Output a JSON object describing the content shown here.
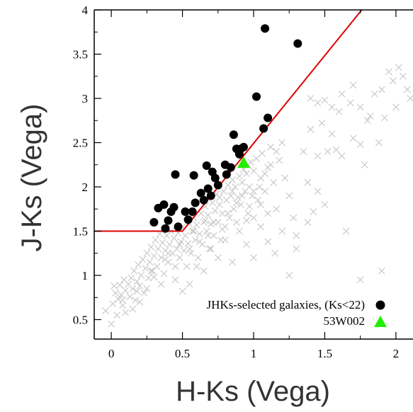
{
  "chart_data": {
    "type": "scatter",
    "xlabel": "H-Ks (Vega)",
    "ylabel": "J-Ks (Vega)",
    "xlim": [
      -0.12,
      2.12
    ],
    "ylim": [
      0.28,
      4.0
    ],
    "xticks": [
      0,
      0.5,
      1,
      1.5,
      2
    ],
    "xtick_labels": [
      "0",
      "0.5",
      "1",
      "1.5",
      "2"
    ],
    "yticks": [
      0.5,
      1,
      1.5,
      2,
      2.5,
      3,
      3.5,
      4
    ],
    "ytick_labels": [
      "0.5",
      "1",
      "1.5",
      "2",
      "2.5",
      "3",
      "3.5",
      "4"
    ],
    "grid": false,
    "legend_position": "bottom-right",
    "legend": [
      {
        "label": "JHKs-selected galaxies, (Ks<22)",
        "marker": "circle",
        "color": "#000000"
      },
      {
        "label": "53W002",
        "marker": "triangle",
        "color": "#22ee00"
      }
    ],
    "selection_line": {
      "color": "#dd0000",
      "points": [
        [
          -0.12,
          1.5
        ],
        [
          0.5,
          1.5
        ],
        [
          1.76,
          4.0
        ]
      ]
    },
    "selected_galaxies": [
      [
        0.3,
        1.6
      ],
      [
        0.33,
        1.76
      ],
      [
        0.37,
        1.8
      ],
      [
        0.38,
        1.53
      ],
      [
        0.4,
        1.62
      ],
      [
        0.42,
        1.72
      ],
      [
        0.44,
        1.77
      ],
      [
        0.45,
        2.14
      ],
      [
        0.47,
        1.55
      ],
      [
        0.52,
        1.72
      ],
      [
        0.54,
        1.63
      ],
      [
        0.57,
        1.72
      ],
      [
        0.58,
        2.13
      ],
      [
        0.59,
        1.82
      ],
      [
        0.63,
        1.93
      ],
      [
        0.65,
        1.85
      ],
      [
        0.67,
        2.24
      ],
      [
        0.68,
        1.98
      ],
      [
        0.7,
        1.9
      ],
      [
        0.71,
        2.17
      ],
      [
        0.73,
        2.1
      ],
      [
        0.75,
        2.02
      ],
      [
        0.8,
        2.25
      ],
      [
        0.81,
        2.14
      ],
      [
        0.84,
        2.22
      ],
      [
        0.86,
        2.59
      ],
      [
        0.88,
        2.43
      ],
      [
        0.9,
        2.37
      ],
      [
        0.91,
        2.43
      ],
      [
        0.93,
        2.45
      ],
      [
        1.02,
        3.02
      ],
      [
        1.07,
        2.66
      ],
      [
        1.08,
        3.79
      ],
      [
        1.1,
        2.78
      ],
      [
        1.31,
        3.62
      ]
    ],
    "target_53W002": [
      0.93,
      2.27
    ],
    "field_objects": [
      [
        -0.04,
        0.6
      ],
      [
        0.0,
        0.45
      ],
      [
        0.01,
        0.68
      ],
      [
        0.03,
        0.8
      ],
      [
        0.04,
        0.55
      ],
      [
        0.05,
        0.73
      ],
      [
        0.06,
        0.89
      ],
      [
        0.07,
        0.78
      ],
      [
        0.08,
        0.66
      ],
      [
        0.09,
        0.95
      ],
      [
        0.1,
        0.83
      ],
      [
        0.1,
        0.58
      ],
      [
        0.12,
        0.9
      ],
      [
        0.13,
        0.76
      ],
      [
        0.14,
        0.97
      ],
      [
        0.15,
        0.85
      ],
      [
        0.16,
        1.05
      ],
      [
        0.17,
        0.72
      ],
      [
        0.18,
        0.93
      ],
      [
        0.19,
        1.12
      ],
      [
        0.2,
        0.88
      ],
      [
        0.21,
        1.0
      ],
      [
        0.22,
        1.18
      ],
      [
        0.23,
        0.8
      ],
      [
        0.24,
        1.08
      ],
      [
        0.25,
        1.25
      ],
      [
        0.26,
        0.97
      ],
      [
        0.27,
        1.15
      ],
      [
        0.28,
        1.32
      ],
      [
        0.29,
        1.05
      ],
      [
        0.3,
        1.22
      ],
      [
        0.31,
        1.4
      ],
      [
        0.32,
        1.1
      ],
      [
        0.33,
        1.3
      ],
      [
        0.34,
        1.47
      ],
      [
        0.35,
        1.2
      ],
      [
        0.36,
        1.37
      ],
      [
        0.37,
        1.02
      ],
      [
        0.38,
        1.28
      ],
      [
        0.39,
        1.45
      ],
      [
        0.4,
        1.15
      ],
      [
        0.41,
        1.35
      ],
      [
        0.42,
        1.5
      ],
      [
        0.43,
        1.25
      ],
      [
        0.44,
        1.42
      ],
      [
        0.45,
        0.95
      ],
      [
        0.46,
        1.3
      ],
      [
        0.47,
        1.48
      ],
      [
        0.48,
        1.2
      ],
      [
        0.49,
        1.38
      ],
      [
        0.5,
        1.55
      ],
      [
        0.51,
        1.28
      ],
      [
        0.52,
        1.45
      ],
      [
        0.53,
        1.1
      ],
      [
        0.54,
        1.36
      ],
      [
        0.55,
        1.58
      ],
      [
        0.56,
        1.25
      ],
      [
        0.57,
        1.5
      ],
      [
        0.58,
        1.65
      ],
      [
        0.59,
        1.4
      ],
      [
        0.6,
        1.57
      ],
      [
        0.61,
        1.2
      ],
      [
        0.62,
        1.47
      ],
      [
        0.63,
        1.7
      ],
      [
        0.64,
        1.35
      ],
      [
        0.65,
        1.6
      ],
      [
        0.66,
        1.78
      ],
      [
        0.67,
        1.5
      ],
      [
        0.68,
        1.68
      ],
      [
        0.69,
        1.3
      ],
      [
        0.7,
        1.58
      ],
      [
        0.71,
        1.82
      ],
      [
        0.72,
        1.45
      ],
      [
        0.73,
        1.73
      ],
      [
        0.74,
        1.92
      ],
      [
        0.75,
        1.6
      ],
      [
        0.76,
        1.8
      ],
      [
        0.77,
        1.4
      ],
      [
        0.78,
        1.7
      ],
      [
        0.79,
        1.95
      ],
      [
        0.8,
        1.55
      ],
      [
        0.81,
        1.85
      ],
      [
        0.82,
        2.02
      ],
      [
        0.83,
        1.65
      ],
      [
        0.84,
        1.9
      ],
      [
        0.85,
        2.08
      ],
      [
        0.86,
        1.75
      ],
      [
        0.87,
        2.0
      ],
      [
        0.88,
        1.6
      ],
      [
        0.89,
        1.88
      ],
      [
        0.9,
        2.12
      ],
      [
        0.91,
        1.8
      ],
      [
        0.92,
        2.05
      ],
      [
        0.93,
        2.2
      ],
      [
        0.94,
        1.95
      ],
      [
        0.95,
        2.15
      ],
      [
        0.96,
        1.7
      ],
      [
        0.97,
        2.0
      ],
      [
        0.98,
        2.28
      ],
      [
        0.99,
        1.9
      ],
      [
        1.0,
        2.18
      ],
      [
        1.02,
        2.32
      ],
      [
        1.03,
        1.85
      ],
      [
        1.05,
        2.1
      ],
      [
        1.06,
        2.38
      ],
      [
        1.08,
        1.95
      ],
      [
        1.1,
        2.22
      ],
      [
        1.12,
        2.45
      ],
      [
        1.14,
        2.05
      ],
      [
        1.16,
        1.75
      ],
      [
        1.18,
        2.3
      ],
      [
        1.2,
        1.5
      ],
      [
        1.22,
        2.1
      ],
      [
        1.25,
        1.9
      ],
      [
        1.28,
        1.65
      ],
      [
        1.3,
        1.45
      ],
      [
        1.15,
        1.25
      ],
      [
        1.05,
        1.55
      ],
      [
        0.95,
        1.35
      ],
      [
        0.85,
        1.15
      ],
      [
        0.75,
        1.2
      ],
      [
        0.65,
        1.05
      ],
      [
        0.55,
        0.9
      ],
      [
        0.6,
        1.1
      ],
      [
        0.7,
        1.3
      ],
      [
        0.8,
        1.4
      ],
      [
        0.9,
        1.5
      ],
      [
        1.0,
        1.65
      ],
      [
        1.1,
        1.7
      ],
      [
        0.5,
        0.82
      ],
      [
        0.45,
        1.1
      ],
      [
        0.35,
        0.9
      ],
      [
        0.25,
        0.85
      ],
      [
        0.15,
        0.62
      ],
      [
        0.2,
        0.7
      ],
      [
        0.3,
        0.98
      ],
      [
        0.4,
        1.25
      ],
      [
        0.55,
        1.3
      ],
      [
        0.62,
        1.38
      ],
      [
        0.68,
        1.45
      ],
      [
        0.72,
        1.6
      ],
      [
        0.78,
        1.52
      ],
      [
        0.82,
        1.7
      ],
      [
        0.88,
        1.82
      ],
      [
        0.92,
        1.9
      ],
      [
        0.97,
        1.78
      ],
      [
        1.0,
        1.95
      ],
      [
        1.04,
        2.0
      ],
      [
        1.08,
        2.15
      ],
      [
        1.12,
        2.25
      ],
      [
        1.16,
        2.4
      ],
      [
        1.2,
        2.5
      ],
      [
        0.85,
        1.95
      ],
      [
        0.76,
        1.88
      ],
      [
        0.66,
        1.62
      ],
      [
        0.58,
        1.5
      ],
      [
        0.48,
        1.35
      ],
      [
        0.38,
        1.18
      ],
      [
        0.28,
        1.05
      ],
      [
        0.18,
        0.82
      ],
      [
        0.08,
        0.72
      ],
      [
        0.02,
        0.88
      ],
      [
        1.4,
        3.0
      ],
      [
        1.45,
        2.95
      ],
      [
        1.5,
        2.98
      ],
      [
        1.55,
        2.9
      ],
      [
        1.6,
        2.85
      ],
      [
        1.68,
        2.95
      ],
      [
        1.75,
        2.9
      ],
      [
        1.8,
        2.75
      ],
      [
        1.82,
        2.8
      ],
      [
        1.85,
        3.05
      ],
      [
        1.9,
        3.1
      ],
      [
        1.95,
        3.3
      ],
      [
        1.98,
        3.2
      ],
      [
        2.02,
        3.35
      ],
      [
        2.05,
        3.25
      ],
      [
        2.08,
        3.1
      ],
      [
        2.1,
        3.0
      ],
      [
        1.7,
        3.15
      ],
      [
        1.62,
        3.05
      ],
      [
        1.4,
        2.65
      ],
      [
        1.48,
        2.72
      ],
      [
        1.55,
        2.6
      ],
      [
        1.58,
        2.42
      ],
      [
        1.62,
        2.35
      ],
      [
        1.7,
        2.55
      ],
      [
        1.75,
        2.48
      ],
      [
        1.35,
        2.4
      ],
      [
        1.45,
        2.35
      ],
      [
        1.52,
        2.4
      ],
      [
        1.78,
        2.25
      ],
      [
        1.88,
        2.5
      ],
      [
        1.92,
        2.78
      ],
      [
        2.0,
        2.9
      ],
      [
        1.38,
        2.05
      ],
      [
        1.45,
        1.95
      ],
      [
        1.65,
        1.5
      ],
      [
        1.42,
        1.72
      ],
      [
        1.38,
        1.6
      ],
      [
        1.5,
        1.8
      ],
      [
        1.3,
        1.3
      ],
      [
        1.25,
        1.0
      ],
      [
        1.9,
        1.05
      ],
      [
        1.75,
        0.95
      ],
      [
        1.0,
        1.2
      ],
      [
        1.1,
        1.38
      ],
      [
        0.95,
        1.62
      ],
      [
        1.05,
        1.8
      ],
      [
        0.92,
        2.35
      ],
      [
        0.96,
        2.25
      ]
    ]
  }
}
